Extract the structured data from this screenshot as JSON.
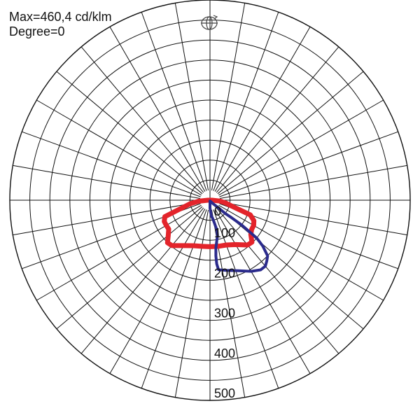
{
  "header": {
    "max_text": "Max=460,4 cd/klm",
    "degree_text": "Degree=0"
  },
  "icons": {
    "rotate": "rotate-view-icon"
  },
  "chart_data": {
    "type": "polar",
    "title": "",
    "unit": "cd/klm",
    "max_value": 460.4,
    "degree": 0,
    "angle_step_deg": 10,
    "rlim": [
      0,
      500
    ],
    "ring_step": 100,
    "ring_labels": [
      "0",
      "100",
      "200",
      "300",
      "400",
      "500"
    ],
    "grid": true,
    "series": [
      {
        "color": "#e3242b",
        "stroke": 7,
        "points": [
          [
            0,
            116
          ],
          [
            10,
            117
          ],
          [
            20,
            119
          ],
          [
            30,
            128
          ],
          [
            40,
            146
          ],
          [
            45,
            148
          ],
          [
            50,
            133
          ],
          [
            55,
            127
          ],
          [
            60,
            126
          ],
          [
            65,
            121
          ],
          [
            70,
            107
          ],
          [
            75,
            56
          ],
          [
            80,
            40
          ],
          [
            85,
            25
          ],
          [
            90,
            5
          ],
          [
            -10,
            117
          ],
          [
            -20,
            121
          ],
          [
            -30,
            131
          ],
          [
            -40,
            148
          ],
          [
            -45,
            150
          ],
          [
            -50,
            136
          ],
          [
            -55,
            126
          ],
          [
            -60,
            126
          ],
          [
            -65,
            126
          ],
          [
            -70,
            120
          ],
          [
            -75,
            70
          ],
          [
            -80,
            50
          ],
          [
            -85,
            28
          ],
          [
            -90,
            5
          ]
        ]
      },
      {
        "color": "#2b2b8c",
        "stroke": 4,
        "points": [
          [
            0,
            20
          ],
          [
            5,
            40
          ],
          [
            8,
            45
          ],
          [
            11,
            58
          ],
          [
            13,
            76
          ],
          [
            12,
            90
          ],
          [
            10,
            100
          ],
          [
            7,
            120
          ],
          [
            6,
            140
          ],
          [
            6,
            160
          ],
          [
            7,
            175
          ],
          [
            13,
            180
          ],
          [
            22,
            190
          ],
          [
            30,
            205
          ],
          [
            36,
            215
          ],
          [
            40,
            215
          ],
          [
            43,
            208
          ],
          [
            46,
            200
          ],
          [
            49,
            175
          ],
          [
            51,
            150
          ],
          [
            52,
            100
          ],
          [
            51,
            70
          ],
          [
            49,
            50
          ],
          [
            48,
            30
          ],
          [
            40,
            10
          ],
          [
            0,
            2
          ]
        ]
      }
    ]
  }
}
